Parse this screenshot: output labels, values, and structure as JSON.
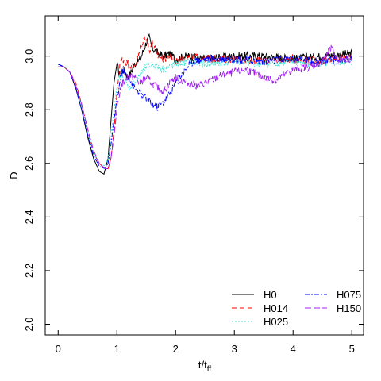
{
  "chart_data": {
    "type": "line",
    "xlabel": "t/t",
    "xlabel_sub": "ff",
    "ylabel": "D",
    "xlim": [
      -0.22,
      5.2
    ],
    "ylim": [
      1.96,
      3.15
    ],
    "xticks": [
      "0",
      "1",
      "2",
      "3",
      "4",
      "5"
    ],
    "yticks": [
      "2.0",
      "2.2",
      "2.4",
      "2.6",
      "2.8",
      "3.0"
    ],
    "grid": false,
    "legend_position": "bottom-right",
    "series": [
      {
        "name": "H0",
        "color": "#000000",
        "dash": "none",
        "x": [
          0,
          0.1,
          0.2,
          0.3,
          0.4,
          0.5,
          0.6,
          0.7,
          0.78,
          0.85,
          0.9,
          0.95,
          1.0,
          1.05,
          1.1,
          1.2,
          1.3,
          1.4,
          1.5,
          1.55,
          1.6,
          1.7,
          1.8,
          1.9,
          2.0,
          2.2,
          2.5,
          3.0,
          3.5,
          4.0,
          4.5,
          5.0
        ],
        "y": [
          2.97,
          2.96,
          2.94,
          2.88,
          2.8,
          2.7,
          2.62,
          2.57,
          2.56,
          2.62,
          2.76,
          2.9,
          2.97,
          2.93,
          2.95,
          2.92,
          2.97,
          2.99,
          3.05,
          3.07,
          3.03,
          3.01,
          3.0,
          3.01,
          2.99,
          3.0,
          2.99,
          3.0,
          3.0,
          2.99,
          3.0,
          3.01
        ]
      },
      {
        "name": "H014",
        "color": "#ff0000",
        "dash": "6,4",
        "x": [
          0,
          0.1,
          0.2,
          0.3,
          0.4,
          0.5,
          0.6,
          0.7,
          0.8,
          0.85,
          0.9,
          0.95,
          1.0,
          1.05,
          1.1,
          1.2,
          1.3,
          1.4,
          1.45,
          1.5,
          1.55,
          1.6,
          1.7,
          1.8,
          1.9,
          2.0,
          2.2,
          2.5,
          3.0,
          3.5,
          4.0,
          4.5,
          5.0
        ],
        "y": [
          2.96,
          2.96,
          2.94,
          2.9,
          2.82,
          2.73,
          2.64,
          2.6,
          2.58,
          2.58,
          2.62,
          2.72,
          2.86,
          2.97,
          2.99,
          2.97,
          2.96,
          3.02,
          3.06,
          3.07,
          3.02,
          3.05,
          3.0,
          2.99,
          3.0,
          2.98,
          3.0,
          2.99,
          2.99,
          2.98,
          2.99,
          2.98,
          3.0
        ]
      },
      {
        "name": "H025",
        "color": "#40e0d0",
        "dash": "2,2",
        "x": [
          0,
          0.1,
          0.2,
          0.3,
          0.4,
          0.5,
          0.6,
          0.7,
          0.8,
          0.85,
          0.9,
          0.95,
          1.0,
          1.05,
          1.1,
          1.2,
          1.3,
          1.4,
          1.5,
          1.6,
          1.7,
          1.8,
          1.9,
          2.0,
          2.2,
          2.5,
          3.0,
          3.5,
          4.0,
          4.5,
          5.0
        ],
        "y": [
          2.96,
          2.96,
          2.94,
          2.89,
          2.81,
          2.72,
          2.64,
          2.6,
          2.59,
          2.62,
          2.7,
          2.8,
          2.88,
          2.93,
          2.92,
          2.88,
          2.9,
          2.93,
          2.96,
          2.97,
          2.96,
          2.95,
          2.96,
          2.97,
          2.98,
          2.97,
          2.98,
          2.97,
          2.98,
          2.97,
          2.98
        ]
      },
      {
        "name": "H075",
        "color": "#0000ff",
        "dash": "6,2,2,2",
        "x": [
          0,
          0.1,
          0.2,
          0.3,
          0.4,
          0.5,
          0.6,
          0.7,
          0.8,
          0.85,
          0.9,
          0.95,
          1.0,
          1.05,
          1.1,
          1.2,
          1.3,
          1.4,
          1.5,
          1.6,
          1.7,
          1.8,
          1.9,
          2.0,
          2.1,
          2.2,
          2.3,
          2.5,
          3.0,
          3.5,
          4.0,
          4.5,
          5.0
        ],
        "y": [
          2.97,
          2.96,
          2.94,
          2.88,
          2.8,
          2.71,
          2.63,
          2.59,
          2.58,
          2.6,
          2.67,
          2.76,
          2.84,
          2.9,
          2.95,
          2.92,
          2.88,
          2.86,
          2.84,
          2.82,
          2.81,
          2.83,
          2.86,
          2.9,
          2.93,
          2.96,
          2.98,
          2.99,
          2.99,
          2.98,
          2.99,
          2.98,
          2.99
        ]
      },
      {
        "name": "H150",
        "color": "#a020f0",
        "dash": "8,3",
        "x": [
          0,
          0.1,
          0.2,
          0.3,
          0.4,
          0.5,
          0.6,
          0.7,
          0.8,
          0.85,
          0.9,
          0.95,
          1.0,
          1.05,
          1.1,
          1.2,
          1.3,
          1.4,
          1.5,
          1.6,
          1.7,
          1.8,
          1.9,
          2.0,
          2.1,
          2.2,
          2.4,
          2.6,
          2.8,
          3.0,
          3.2,
          3.5,
          3.7,
          4.0,
          4.3,
          4.5,
          4.65,
          4.75,
          5.0
        ],
        "y": [
          2.96,
          2.96,
          2.94,
          2.89,
          2.82,
          2.73,
          2.65,
          2.6,
          2.58,
          2.58,
          2.62,
          2.7,
          2.8,
          2.87,
          2.9,
          2.93,
          2.92,
          2.9,
          2.92,
          2.9,
          2.88,
          2.87,
          2.9,
          2.92,
          2.91,
          2.9,
          2.89,
          2.91,
          2.93,
          2.94,
          2.95,
          2.92,
          2.91,
          2.95,
          2.96,
          2.98,
          3.03,
          2.99,
          2.99
        ]
      }
    ]
  }
}
